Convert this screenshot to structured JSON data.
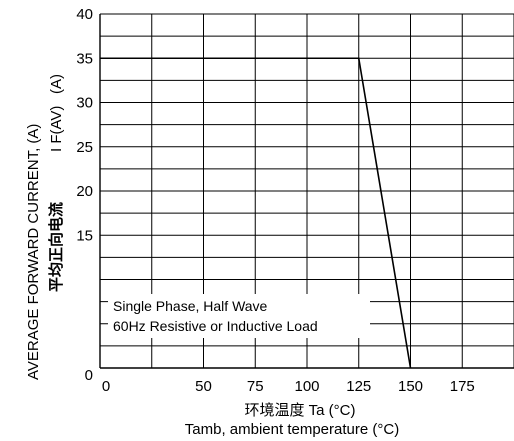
{
  "chart_data": {
    "type": "line",
    "x_ticks": [
      "0",
      "50",
      "75",
      "100",
      "125",
      "150",
      "175"
    ],
    "y_ticks": [
      "0",
      "15",
      "20",
      "25",
      "30",
      "35",
      "40"
    ],
    "xlabel_cn": "环境温度 Ta (°C)",
    "xlabel": "Tamb, ambient temperature (°C)",
    "ylabel": "AVERAGE FORWARD CURRENT, (A)",
    "ylabel_cn": "平均正向电流",
    "ylabel_symbol": "I F(AV)",
    "ylabel_unit": "(A)",
    "annotation_line1": "Single Phase, Half Wave",
    "annotation_line2": "60Hz Resistive or Inductive Load",
    "grid": true,
    "series": [
      {
        "x": [
          0,
          125,
          150
        ],
        "y": [
          35,
          35,
          0
        ]
      }
    ]
  }
}
